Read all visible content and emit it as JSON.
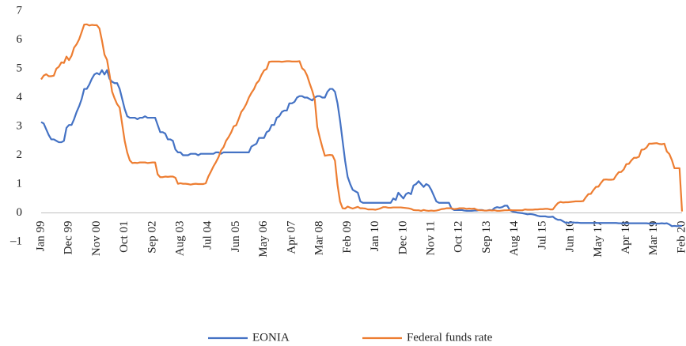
{
  "chart_data": {
    "type": "line",
    "categories": [
      "Jan 99",
      null,
      null,
      null,
      null,
      null,
      null,
      null,
      null,
      null,
      null,
      "Dec 99",
      null,
      null,
      null,
      null,
      null,
      null,
      null,
      null,
      null,
      null,
      "Nov 00",
      null,
      null,
      null,
      null,
      null,
      null,
      null,
      null,
      null,
      null,
      "Oct 01",
      null,
      null,
      null,
      null,
      null,
      null,
      null,
      null,
      null,
      null,
      "Sep 02",
      null,
      null,
      null,
      null,
      null,
      null,
      null,
      null,
      null,
      null,
      "Aug 03",
      null,
      null,
      null,
      null,
      null,
      null,
      null,
      null,
      null,
      null,
      "Jul 04",
      null,
      null,
      null,
      null,
      null,
      null,
      null,
      null,
      null,
      null,
      "Jun 05",
      null,
      null,
      null,
      null,
      null,
      null,
      null,
      null,
      null,
      null,
      "May 06",
      null,
      null,
      null,
      null,
      null,
      null,
      null,
      null,
      null,
      null,
      "Apr 07",
      null,
      null,
      null,
      null,
      null,
      null,
      null,
      null,
      null,
      null,
      "Mar 08",
      null,
      null,
      null,
      null,
      null,
      null,
      null,
      null,
      null,
      null,
      "Feb 09",
      null,
      null,
      null,
      null,
      null,
      null,
      null,
      null,
      null,
      null,
      "Jan 10",
      null,
      null,
      null,
      null,
      null,
      null,
      null,
      null,
      null,
      null,
      "Dec 10",
      null,
      null,
      null,
      null,
      null,
      null,
      null,
      null,
      null,
      null,
      "Nov 11",
      null,
      null,
      null,
      null,
      null,
      null,
      null,
      null,
      null,
      null,
      "Oct 12",
      null,
      null,
      null,
      null,
      null,
      null,
      null,
      null,
      null,
      null,
      "Sep 13",
      null,
      null,
      null,
      null,
      null,
      null,
      null,
      null,
      null,
      null,
      "Aug 14",
      null,
      null,
      null,
      null,
      null,
      null,
      null,
      null,
      null,
      null,
      "Jul 15",
      null,
      null,
      null,
      null,
      null,
      null,
      null,
      null,
      null,
      null,
      "Jun 16",
      null,
      null,
      null,
      null,
      null,
      null,
      null,
      null,
      null,
      null,
      "May 17",
      null,
      null,
      null,
      null,
      null,
      null,
      null,
      null,
      null,
      null,
      "Apr 18",
      null,
      null,
      null,
      null,
      null,
      null,
      null,
      null,
      null,
      null,
      "Mar 19",
      null,
      null,
      null,
      null,
      null,
      null,
      null,
      null,
      null,
      null,
      "Feb 20"
    ],
    "series": [
      {
        "name": "EONIA",
        "color": "#4472c4",
        "values": [
          3.15,
          3.1,
          2.9,
          2.7,
          2.55,
          2.55,
          2.5,
          2.45,
          2.45,
          2.5,
          2.95,
          3.05,
          3.05,
          3.25,
          3.5,
          3.7,
          3.95,
          4.3,
          4.3,
          4.45,
          4.65,
          4.8,
          4.85,
          4.8,
          4.95,
          4.8,
          4.95,
          4.65,
          4.55,
          4.5,
          4.5,
          4.3,
          3.95,
          3.6,
          3.35,
          3.3,
          3.3,
          3.3,
          3.25,
          3.3,
          3.3,
          3.35,
          3.3,
          3.3,
          3.3,
          3.3,
          3.05,
          2.8,
          2.8,
          2.75,
          2.55,
          2.55,
          2.5,
          2.2,
          2.1,
          2.1,
          2.0,
          2.0,
          2.0,
          2.05,
          2.05,
          2.05,
          2.0,
          2.05,
          2.05,
          2.05,
          2.05,
          2.05,
          2.05,
          2.1,
          2.1,
          2.05,
          2.1,
          2.1,
          2.1,
          2.1,
          2.1,
          2.1,
          2.1,
          2.1,
          2.1,
          2.1,
          2.1,
          2.3,
          2.35,
          2.4,
          2.6,
          2.6,
          2.6,
          2.8,
          2.85,
          3.05,
          3.05,
          3.3,
          3.35,
          3.5,
          3.55,
          3.55,
          3.8,
          3.8,
          3.85,
          4.0,
          4.05,
          4.05,
          4.0,
          4.0,
          3.95,
          3.9,
          4.0,
          4.05,
          4.05,
          4.0,
          4.0,
          4.2,
          4.3,
          4.3,
          4.2,
          3.8,
          3.2,
          2.5,
          1.8,
          1.25,
          1.0,
          0.8,
          0.75,
          0.7,
          0.4,
          0.35,
          0.35,
          0.35,
          0.35,
          0.35,
          0.35,
          0.35,
          0.35,
          0.35,
          0.35,
          0.35,
          0.35,
          0.5,
          0.45,
          0.7,
          0.6,
          0.5,
          0.65,
          0.7,
          0.65,
          0.95,
          1.0,
          1.1,
          1.0,
          0.9,
          1.0,
          0.95,
          0.8,
          0.6,
          0.4,
          0.35,
          0.35,
          0.35,
          0.35,
          0.35,
          0.15,
          0.1,
          0.1,
          0.1,
          0.1,
          0.08,
          0.07,
          0.07,
          0.07,
          0.08,
          0.08,
          0.1,
          0.1,
          0.08,
          0.08,
          0.1,
          0.09,
          0.17,
          0.2,
          0.18,
          0.2,
          0.25,
          0.25,
          0.1,
          0.05,
          0.03,
          0.01,
          0.0,
          -0.01,
          -0.03,
          -0.05,
          -0.04,
          -0.05,
          -0.07,
          -0.1,
          -0.12,
          -0.12,
          -0.12,
          -0.14,
          -0.14,
          -0.13,
          -0.2,
          -0.24,
          -0.24,
          -0.29,
          -0.34,
          -0.34,
          -0.33,
          -0.33,
          -0.34,
          -0.34,
          -0.35,
          -0.35,
          -0.35,
          -0.35,
          -0.35,
          -0.35,
          -0.35,
          -0.35,
          -0.35,
          -0.35,
          -0.35,
          -0.35,
          -0.35,
          -0.35,
          -0.35,
          -0.36,
          -0.36,
          -0.36,
          -0.36,
          -0.36,
          -0.36,
          -0.36,
          -0.36,
          -0.36,
          -0.36,
          -0.36,
          -0.36,
          -0.37,
          -0.37,
          -0.37,
          -0.37,
          -0.37,
          -0.36,
          -0.37,
          -0.36,
          -0.4,
          -0.46,
          -0.45,
          -0.46,
          -0.45,
          -0.45
        ]
      },
      {
        "name": "Federal funds rate",
        "color": "#ed7d31",
        "values": [
          4.63,
          4.76,
          4.81,
          4.74,
          4.74,
          4.76,
          5.0,
          5.07,
          5.22,
          5.2,
          5.42,
          5.3,
          5.45,
          5.73,
          5.85,
          6.02,
          6.27,
          6.53,
          6.54,
          6.5,
          6.52,
          6.51,
          6.51,
          6.4,
          5.98,
          5.49,
          5.31,
          4.8,
          4.21,
          3.97,
          3.77,
          3.65,
          3.07,
          2.49,
          2.09,
          1.82,
          1.73,
          1.74,
          1.73,
          1.75,
          1.75,
          1.75,
          1.73,
          1.74,
          1.75,
          1.75,
          1.34,
          1.24,
          1.24,
          1.26,
          1.25,
          1.26,
          1.26,
          1.22,
          1.01,
          1.03,
          1.01,
          1.01,
          1.0,
          0.98,
          1.0,
          1.01,
          1.0,
          1.0,
          1.0,
          1.03,
          1.26,
          1.43,
          1.61,
          1.76,
          1.93,
          2.16,
          2.28,
          2.5,
          2.63,
          2.79,
          3.0,
          3.04,
          3.26,
          3.5,
          3.62,
          3.78,
          4.0,
          4.16,
          4.29,
          4.49,
          4.59,
          4.79,
          4.94,
          4.99,
          5.24,
          5.25,
          5.25,
          5.25,
          5.25,
          5.24,
          5.25,
          5.26,
          5.26,
          5.25,
          5.25,
          5.25,
          5.26,
          5.02,
          4.94,
          4.76,
          4.49,
          4.24,
          3.94,
          2.98,
          2.61,
          2.28,
          1.98,
          2.0,
          2.01,
          2.0,
          1.81,
          0.97,
          0.39,
          0.16,
          0.15,
          0.22,
          0.18,
          0.15,
          0.18,
          0.21,
          0.16,
          0.16,
          0.15,
          0.12,
          0.12,
          0.12,
          0.11,
          0.13,
          0.16,
          0.2,
          0.2,
          0.18,
          0.18,
          0.19,
          0.19,
          0.19,
          0.19,
          0.18,
          0.17,
          0.16,
          0.14,
          0.1,
          0.09,
          0.09,
          0.07,
          0.1,
          0.08,
          0.07,
          0.08,
          0.07,
          0.08,
          0.1,
          0.13,
          0.14,
          0.16,
          0.16,
          0.16,
          0.13,
          0.14,
          0.16,
          0.16,
          0.16,
          0.14,
          0.15,
          0.14,
          0.15,
          0.11,
          0.09,
          0.09,
          0.08,
          0.08,
          0.09,
          0.08,
          0.09,
          0.07,
          0.07,
          0.08,
          0.09,
          0.09,
          0.1,
          0.09,
          0.09,
          0.09,
          0.09,
          0.09,
          0.12,
          0.11,
          0.11,
          0.11,
          0.12,
          0.12,
          0.13,
          0.13,
          0.14,
          0.14,
          0.12,
          0.12,
          0.24,
          0.34,
          0.38,
          0.36,
          0.37,
          0.37,
          0.38,
          0.39,
          0.4,
          0.4,
          0.4,
          0.41,
          0.54,
          0.65,
          0.66,
          0.79,
          0.9,
          0.91,
          1.04,
          1.15,
          1.16,
          1.15,
          1.15,
          1.16,
          1.3,
          1.41,
          1.42,
          1.51,
          1.69,
          1.7,
          1.82,
          1.91,
          1.91,
          1.95,
          2.19,
          2.2,
          2.27,
          2.4,
          2.4,
          2.41,
          2.42,
          2.39,
          2.38,
          2.4,
          2.13,
          2.04,
          1.83,
          1.55,
          1.55,
          1.55,
          0.05
        ]
      }
    ],
    "ylim": [
      -1,
      7
    ],
    "yticks": [
      {
        "value": -1,
        "label": "–1"
      },
      0,
      1,
      2,
      3,
      4,
      5,
      6,
      7
    ],
    "legend": "bottom"
  }
}
